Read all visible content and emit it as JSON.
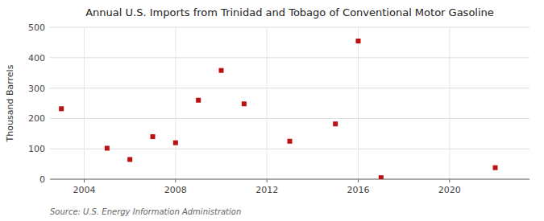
{
  "chart_data": {
    "type": "scatter",
    "title": "Annual U.S. Imports from Trinidad and Tobago of Conventional Motor Gasoline",
    "y_label": "Thousand Barrels",
    "annotations": [
      "Source: U.S. Energy Information Administration"
    ],
    "x": [
      2003,
      2005,
      2006,
      2007,
      2008,
      2009,
      2010,
      2011,
      2013,
      2015,
      2016,
      2017,
      2022
    ],
    "values": [
      232,
      102,
      65,
      140,
      120,
      260,
      358,
      248,
      125,
      182,
      455,
      5,
      38
    ],
    "color": "#bb1111",
    "marker": "square",
    "xlim": [
      2002.5,
      2023.5
    ],
    "ylim": [
      0,
      500
    ],
    "xticks": [
      2004,
      2008,
      2012,
      2016,
      2020
    ],
    "yticks": [
      0,
      100,
      200,
      300,
      400,
      500
    ],
    "grid": true
  }
}
